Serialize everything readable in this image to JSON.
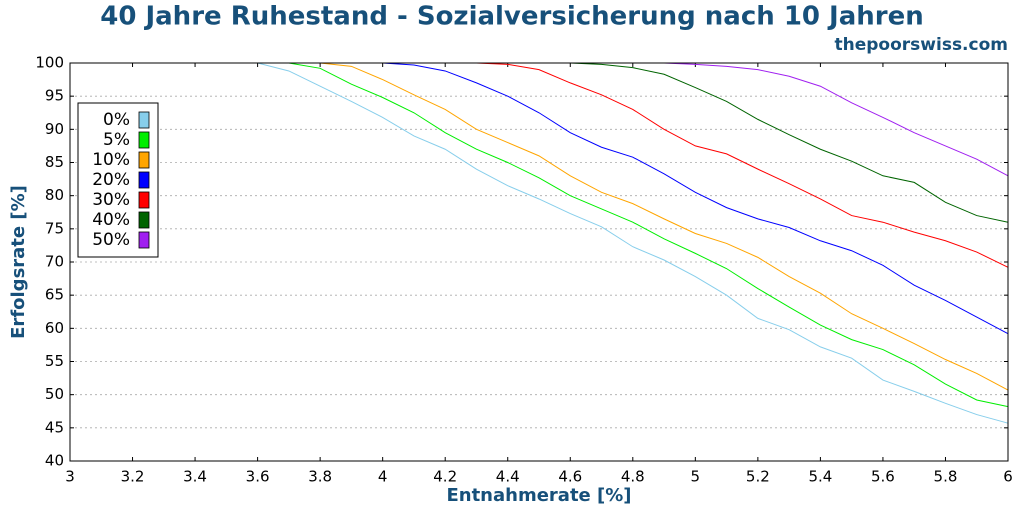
{
  "chart_data": {
    "type": "line",
    "title": "40 Jahre Ruhestand - Sozialversicherung nach 10 Jahren",
    "subtitle": "thepoorswiss.com",
    "x_label": "Entnahmerate [%]",
    "y_label": "Erfolgsrate [%]",
    "x": [
      3,
      3.1,
      3.2,
      3.3,
      3.4,
      3.5,
      3.6,
      3.7,
      3.8,
      3.9,
      4,
      4.1,
      4.2,
      4.3,
      4.4,
      4.5,
      4.6,
      4.7,
      4.8,
      4.9,
      5,
      5.1,
      5.2,
      5.3,
      5.4,
      5.5,
      5.6,
      5.7,
      5.8,
      5.9,
      6
    ],
    "xlim": [
      3,
      6
    ],
    "xticks": [
      3,
      3.2,
      3.4,
      3.6,
      3.8,
      4,
      4.2,
      4.4,
      4.6,
      4.8,
      5,
      5.2,
      5.4,
      5.6,
      5.8,
      6
    ],
    "ylim": [
      40,
      100
    ],
    "yticks": [
      40,
      45,
      50,
      55,
      60,
      65,
      70,
      75,
      80,
      85,
      90,
      95,
      100
    ],
    "grid": true,
    "legend": "upper left",
    "series": [
      {
        "name": "0%",
        "color": "#87ceeb",
        "values": [
          100,
          100,
          100,
          100,
          100,
          100,
          100,
          98.8,
          96.5,
          94.2,
          91.8,
          89,
          87,
          84,
          81.5,
          79.5,
          77.3,
          75.3,
          72.3,
          70.3,
          67.8,
          65,
          61.5,
          59.8,
          57.2,
          55.5,
          52.2,
          50.5,
          48.7,
          47,
          45.7
        ]
      },
      {
        "name": "5%",
        "color": "#00ee00",
        "values": [
          100,
          100,
          100,
          100,
          100,
          100,
          100,
          100,
          99.2,
          96.8,
          94.8,
          92.5,
          89.5,
          87,
          85,
          82.7,
          80,
          78,
          76,
          73.5,
          71.3,
          69,
          66,
          63.2,
          60.5,
          58.3,
          56.8,
          54.5,
          51.6,
          49.2,
          48.2
        ]
      },
      {
        "name": "10%",
        "color": "#ffa500",
        "values": [
          100,
          100,
          100,
          100,
          100,
          100,
          100,
          100,
          100,
          99.5,
          97.5,
          95.2,
          93,
          90,
          88,
          86,
          83,
          80.5,
          78.8,
          76.5,
          74.3,
          72.8,
          70.7,
          67.8,
          65.3,
          62.2,
          60,
          57.7,
          55.3,
          53.2,
          50.7
        ]
      },
      {
        "name": "20%",
        "color": "#0000ff",
        "values": [
          100,
          100,
          100,
          100,
          100,
          100,
          100,
          100,
          100,
          100,
          100,
          99.7,
          98.8,
          97,
          95,
          92.5,
          89.5,
          87.3,
          85.8,
          83.3,
          80.5,
          78.2,
          76.5,
          75.2,
          73.2,
          71.7,
          69.5,
          66.5,
          64.2,
          61.7,
          59.2
        ]
      },
      {
        "name": "30%",
        "color": "#ff0000",
        "values": [
          100,
          100,
          100,
          100,
          100,
          100,
          100,
          100,
          100,
          100,
          100,
          100,
          100,
          100,
          99.8,
          99,
          97,
          95.2,
          93,
          90,
          87.5,
          86.3,
          84,
          81.8,
          79.5,
          77,
          76,
          74.5,
          73.2,
          71.5,
          69.2
        ]
      },
      {
        "name": "40%",
        "color": "#006400",
        "values": [
          100,
          100,
          100,
          100,
          100,
          100,
          100,
          100,
          100,
          100,
          100,
          100,
          100,
          100,
          100,
          100,
          100,
          99.8,
          99.3,
          98.3,
          96.3,
          94.2,
          91.5,
          89.2,
          87,
          85.2,
          83,
          82,
          79,
          77,
          76
        ]
      },
      {
        "name": "50%",
        "color": "#a020f0",
        "values": [
          100,
          100,
          100,
          100,
          100,
          100,
          100,
          100,
          100,
          100,
          100,
          100,
          100,
          100,
          100,
          100,
          100,
          100,
          100,
          100,
          99.8,
          99.5,
          99,
          98,
          96.5,
          94,
          91.8,
          89.5,
          87.5,
          85.5,
          83
        ]
      }
    ]
  }
}
